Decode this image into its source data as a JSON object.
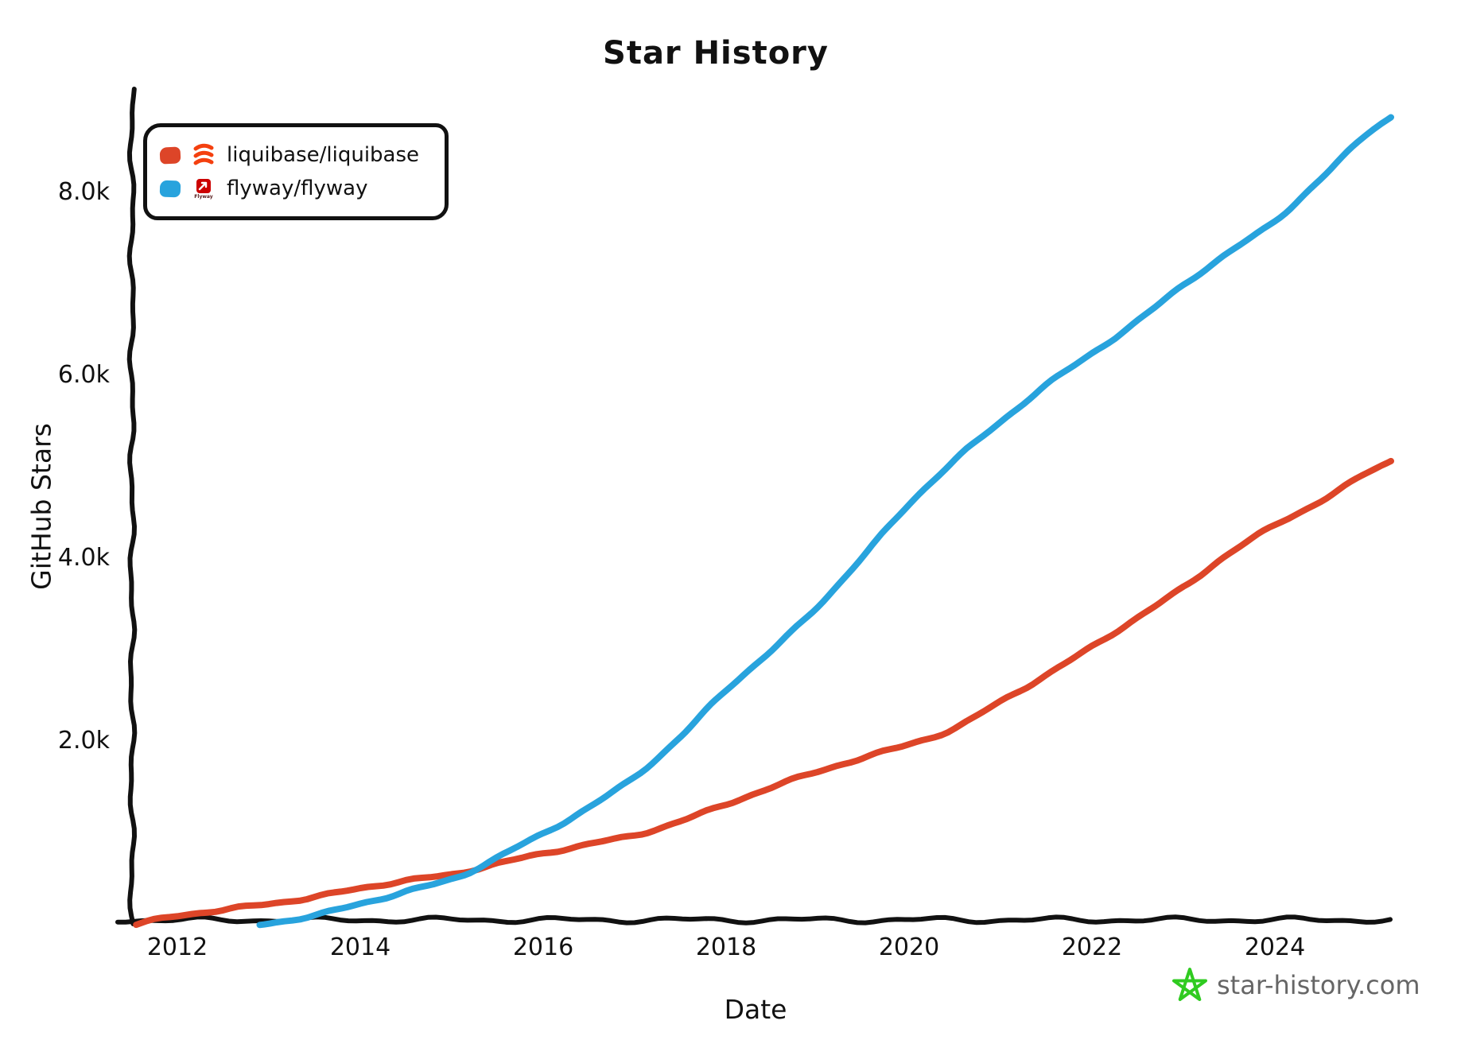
{
  "title": "Star History",
  "watermark": {
    "text": "star-history.com",
    "star_color": "#2fcb20",
    "text_color": "#666666"
  },
  "legend": {
    "flyway_logo_text": "Flyway",
    "liquibase_logo_color": "#f4400f",
    "flyway_logo_color": "#cc0201"
  },
  "axis_color": "#111111",
  "chart_data": {
    "type": "line",
    "title": "Star History",
    "xlabel": "Date",
    "ylabel": "GitHub Stars",
    "x_ticks": [
      2012,
      2014,
      2016,
      2018,
      2020,
      2022,
      2024
    ],
    "y_tick_values": [
      2000,
      4000,
      6000,
      8000
    ],
    "y_tick_labels": [
      "2.0k",
      "4.0k",
      "6.0k",
      "8.0k"
    ],
    "xlim": [
      2011.5,
      2025.3
    ],
    "ylim": [
      0,
      9100
    ],
    "grid": false,
    "legend_position": "top-left",
    "y_unit": "GitHub stars",
    "series": [
      {
        "name": "liquibase/liquibase",
        "color": "#dd4528",
        "x": [
          2011.55,
          2012,
          2012.5,
          2013,
          2013.5,
          2014,
          2014.5,
          2015,
          2015.3,
          2016,
          2016.5,
          2017,
          2017.5,
          2018,
          2018.5,
          2019,
          2019.5,
          2020,
          2020.5,
          2021,
          2021.5,
          2022,
          2022.5,
          2023,
          2023.5,
          2024,
          2024.5,
          2025,
          2025.27
        ],
        "values": [
          0,
          100,
          160,
          230,
          300,
          400,
          480,
          550,
          620,
          780,
          880,
          980,
          1130,
          1320,
          1500,
          1680,
          1820,
          1980,
          2140,
          2450,
          2720,
          3050,
          3350,
          3700,
          4050,
          4380,
          4620,
          4950,
          5070
        ]
      },
      {
        "name": "flyway/flyway",
        "color": "#28a3dd",
        "x": [
          2012.9,
          2013.5,
          2014,
          2014.5,
          2015,
          2015.3,
          2016,
          2016.5,
          2017,
          2017.5,
          2018,
          2018.5,
          2019,
          2019.5,
          2020,
          2020.5,
          2021,
          2021.5,
          2022,
          2022.5,
          2023,
          2023.5,
          2024,
          2024.5,
          2025,
          2025.27
        ],
        "values": [
          0,
          100,
          230,
          360,
          500,
          630,
          1000,
          1280,
          1620,
          2050,
          2570,
          3000,
          3480,
          4030,
          4600,
          5080,
          5500,
          5900,
          6250,
          6600,
          7000,
          7350,
          7700,
          8150,
          8650,
          8830
        ]
      }
    ]
  }
}
